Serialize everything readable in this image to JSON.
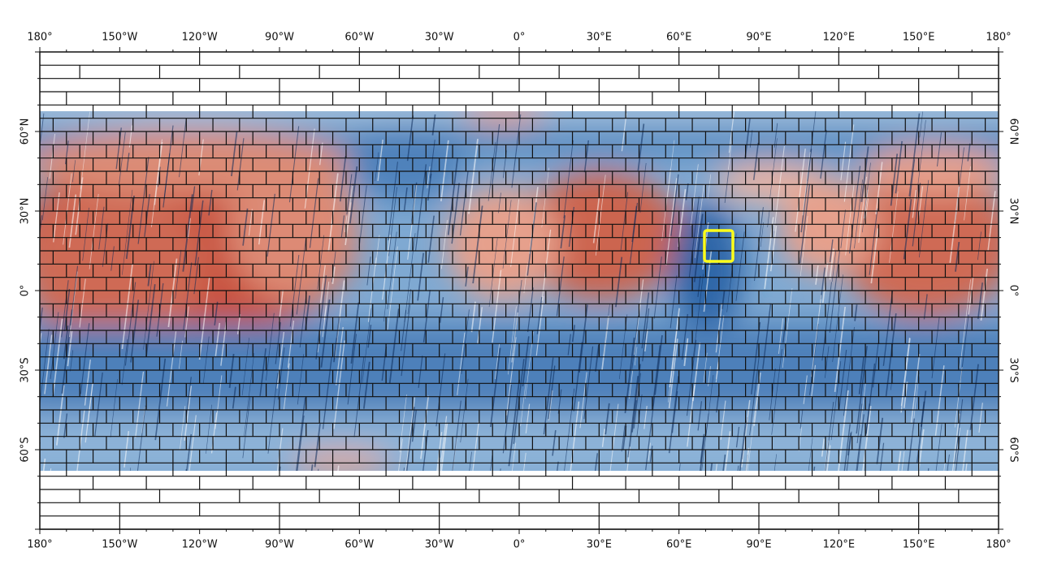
{
  "map": {
    "longitude_labels": [
      "180°",
      "150°W",
      "120°W",
      "90°W",
      "60°W",
      "30°W",
      "0°",
      "30°E",
      "60°E",
      "90°E",
      "120°E",
      "150°E",
      "180°"
    ],
    "latitude_labels": [
      "60°N",
      "30°N",
      "0°",
      "30°S",
      "60°S"
    ]
  }
}
